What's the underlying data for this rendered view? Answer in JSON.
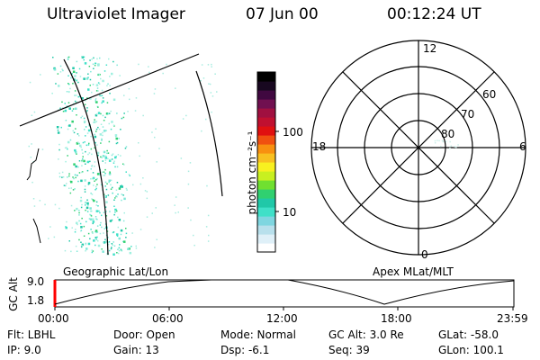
{
  "header": {
    "title": "Ultraviolet Imager",
    "date": "07 Jun 00",
    "time": "00:12:24 UT"
  },
  "left_panel": {
    "caption": "Geographic Lat/Lon"
  },
  "right_panel": {
    "caption": "Apex MLat/MLT",
    "mlt_labels": {
      "top": "12",
      "right": "6",
      "bottom": "0",
      "left": "18"
    },
    "lat_labels": [
      "60",
      "70",
      "80"
    ]
  },
  "colorbar": {
    "unit_label": "photon cm⁻²s⁻¹",
    "ticks": [
      "100",
      "10"
    ],
    "colors": [
      "#ffffff",
      "#dff0f8",
      "#b8e0ec",
      "#7fd6e0",
      "#3fe0c8",
      "#20c8a8",
      "#30d070",
      "#70e030",
      "#c8f020",
      "#f8f020",
      "#f8c020",
      "#f89010",
      "#f05010",
      "#e01010",
      "#c01030",
      "#a01040",
      "#701050",
      "#400840",
      "#180820",
      "#000000"
    ]
  },
  "altitude_panel": {
    "axis_label": "GC Alt",
    "y_ticks": [
      "9.0",
      "1.8"
    ],
    "x_ticks": [
      "00:00",
      "06:00",
      "12:00",
      "18:00",
      "23:59"
    ],
    "marker_color": "#ff0000"
  },
  "info": {
    "filter": "Flt: LBHL",
    "ip": "IP:  9.0",
    "door": "Door: Open",
    "gain": "Gain: 13",
    "mode": "Mode: Normal",
    "dsp": "Dsp:    -6.1",
    "gc_alt": "GC Alt: 3.0 Re",
    "seq": "Seq: 39",
    "glat": "GLat: -58.0",
    "glon": "GLon: 100.1"
  }
}
